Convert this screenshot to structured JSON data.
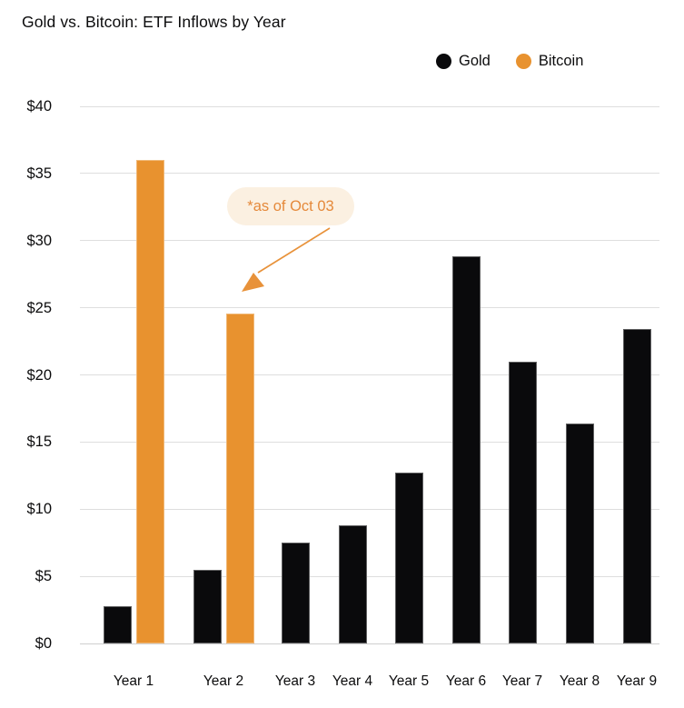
{
  "title": "Gold vs. Bitcoin: ETF Inflows by Year",
  "legend": {
    "items": [
      {
        "label": "Gold",
        "color": "#0a0a0c"
      },
      {
        "label": "Bitcoin",
        "color": "#e8922f"
      }
    ]
  },
  "annotation": {
    "text": "*as of Oct 03",
    "bg_color": "#fbf0e1",
    "text_color": "#e5893a",
    "arrow_color": "#e8923a"
  },
  "chart_data": {
    "type": "bar",
    "title": "Gold vs. Bitcoin: ETF Inflows by Year",
    "categories": [
      "Year 1",
      "Year 2",
      "Year 3",
      "Year 4",
      "Year 5",
      "Year 6",
      "Year 7",
      "Year 8",
      "Year 9"
    ],
    "series": [
      {
        "name": "Gold",
        "color": "#0a0a0c",
        "values": [
          2.8,
          5.5,
          7.5,
          8.8,
          12.7,
          28.8,
          21.0,
          16.4,
          23.4
        ]
      },
      {
        "name": "Bitcoin",
        "color": "#e8922f",
        "values": [
          36.0,
          24.6,
          null,
          null,
          null,
          null,
          null,
          null,
          null
        ]
      }
    ],
    "y_ticks": [
      {
        "value": 0,
        "label": "$0"
      },
      {
        "value": 5,
        "label": "$5"
      },
      {
        "value": 10,
        "label": "$10"
      },
      {
        "value": 15,
        "label": "$15"
      },
      {
        "value": 20,
        "label": "$20"
      },
      {
        "value": 25,
        "label": "$25"
      },
      {
        "value": 30,
        "label": "$30"
      },
      {
        "value": 35,
        "label": "$35"
      },
      {
        "value": 40,
        "label": "$40"
      }
    ],
    "ylim": [
      0,
      40
    ],
    "grid": true,
    "legend_position": "top-right",
    "annotation": {
      "text": "*as of Oct 03",
      "points_to": "Year 2 Bitcoin bar"
    }
  }
}
